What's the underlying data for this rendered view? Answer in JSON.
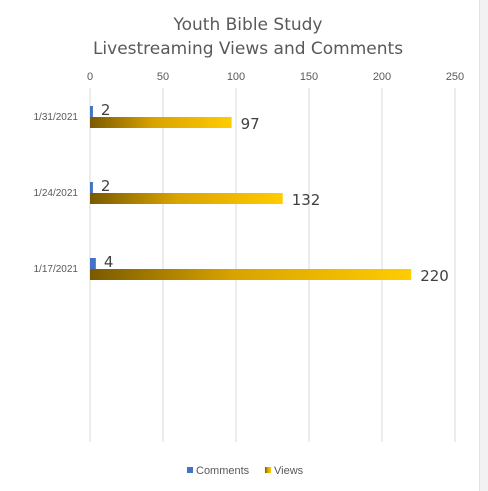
{
  "chart_data": {
    "type": "bar",
    "orientation": "horizontal",
    "title_line1": "Youth Bible Study",
    "title_line2": "Livestreaming Views and Comments",
    "categories": [
      "1/31/2021",
      "1/24/2021",
      "1/17/2021"
    ],
    "series": [
      {
        "name": "Comments",
        "values": [
          2,
          2,
          4
        ],
        "color": "#4472c4"
      },
      {
        "name": "Views",
        "values": [
          97,
          132,
          220
        ],
        "color": "#ffc000"
      }
    ],
    "xlim": [
      0,
      250
    ],
    "xticks": [
      "0",
      "50",
      "100",
      "150",
      "200",
      "250"
    ],
    "grid": true,
    "legend_position": "bottom"
  }
}
